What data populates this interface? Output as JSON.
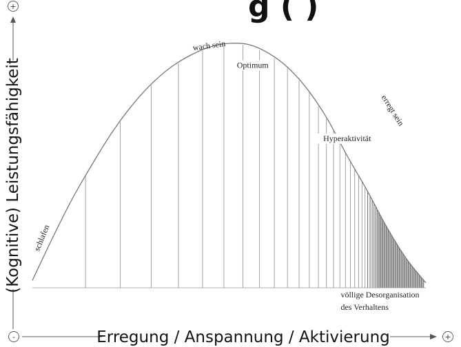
{
  "chart_data": {
    "type": "area",
    "title": "",
    "partial_title": "g (    )",
    "xlabel": "Erregung / Anspannung / Aktivierung",
    "ylabel": "(Kognitive) Leistungsfähigkeit",
    "axis_signs": {
      "x_min": "-",
      "x_max": "+",
      "y_max": "+"
    },
    "xlim": [
      0,
      1
    ],
    "ylim": [
      0,
      1
    ],
    "grid": false,
    "curve": {
      "x": [
        0,
        0.05,
        0.1,
        0.15,
        0.2,
        0.25,
        0.3,
        0.35,
        0.4,
        0.45,
        0.5,
        0.55,
        0.6,
        0.65,
        0.7,
        0.75,
        0.8,
        0.85,
        0.9,
        0.95,
        1.0
      ],
      "y": [
        0.03,
        0.2,
        0.36,
        0.5,
        0.63,
        0.74,
        0.83,
        0.9,
        0.95,
        0.985,
        1.0,
        0.995,
        0.96,
        0.9,
        0.81,
        0.69,
        0.54,
        0.4,
        0.25,
        0.12,
        0.02
      ]
    },
    "annotations": [
      {
        "text": "schlafen",
        "x": 0.03,
        "y": 0.2
      },
      {
        "text": "wach sein",
        "x": 0.45,
        "y": 0.98
      },
      {
        "text": "Optimum",
        "x": 0.56,
        "y": 0.9
      },
      {
        "text": "Hyperaktivität",
        "x": 0.8,
        "y": 0.6
      },
      {
        "text": "erregt sein",
        "x": 0.91,
        "y": 0.72
      },
      {
        "text": "völlige Desorganisation",
        "x": 0.95,
        "y": -0.04
      },
      {
        "text": "des Verhaltens",
        "x": 0.95,
        "y": -0.09
      }
    ]
  }
}
